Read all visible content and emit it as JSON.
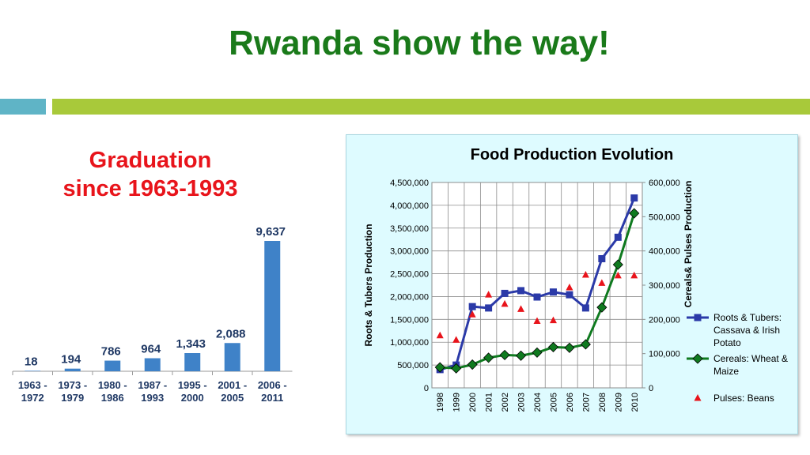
{
  "slide": {
    "title": "Rwanda show the way!"
  },
  "left_title": {
    "line1": "Graduation",
    "line2": "since 1963-1993"
  },
  "chart_data": [
    {
      "type": "bar",
      "categories": [
        [
          "1963 -",
          "1972"
        ],
        [
          "1973 -",
          "1979"
        ],
        [
          "1980 -",
          "1986"
        ],
        [
          "1987 -",
          "1993"
        ],
        [
          "1995 -",
          "2000"
        ],
        [
          "2001 -",
          "2005"
        ],
        [
          "2006 -",
          "2011"
        ]
      ],
      "values": [
        18,
        194,
        786,
        964,
        1343,
        2088,
        9637
      ],
      "data_labels": [
        "18",
        "194",
        "786",
        "964",
        "1,343",
        "2,088",
        "9,637"
      ],
      "ylim": [
        0,
        9637
      ],
      "colors": {
        "bar": "#3f82c8",
        "label": "#1f3864"
      }
    },
    {
      "type": "line",
      "title": "Food Production Evolution",
      "x": [
        "1998",
        "1999",
        "2000",
        "2001",
        "2002",
        "2003",
        "2004",
        "2005",
        "2006",
        "2007",
        "2008",
        "2009",
        "2010"
      ],
      "y_left": {
        "label": "Roots & Tubers Production",
        "range": [
          0,
          4500000
        ],
        "ticks": [
          "0",
          "500,000",
          "1,000,000",
          "1,500,000",
          "2,000,000",
          "2,500,000",
          "3,000,000",
          "3,500,000",
          "4,000,000",
          "4,500,000"
        ]
      },
      "y_right": {
        "label": "Cereals& Pulses Production",
        "range": [
          0,
          600000
        ],
        "ticks": [
          "0",
          "100,000",
          "200,000",
          "300,000",
          "400,000",
          "500,000",
          "600,000"
        ]
      },
      "series": [
        {
          "name": "Roots & Tubers: Cassava & Irish Potato",
          "axis": "left",
          "color": "#2b3aa8",
          "marker": "square",
          "values": [
            400000,
            500000,
            1780000,
            1750000,
            2070000,
            2130000,
            1990000,
            2100000,
            2040000,
            1750000,
            2830000,
            3300000,
            4160000
          ]
        },
        {
          "name": "Cereals: Wheat & Maize",
          "axis": "right",
          "color": "#0f7a1f",
          "marker": "diamond",
          "values": [
            60000,
            57000,
            68000,
            88000,
            96000,
            94000,
            103000,
            119000,
            117000,
            127000,
            235000,
            360000,
            510000
          ]
        },
        {
          "name": "Pulses: Beans",
          "axis": "right",
          "color": "#e8141b",
          "marker": "triangle",
          "values": [
            153000,
            140000,
            214000,
            272000,
            245000,
            230000,
            195000,
            197000,
            293000,
            330000,
            306000,
            328000,
            328000
          ]
        }
      ],
      "legend_position": "right"
    }
  ]
}
